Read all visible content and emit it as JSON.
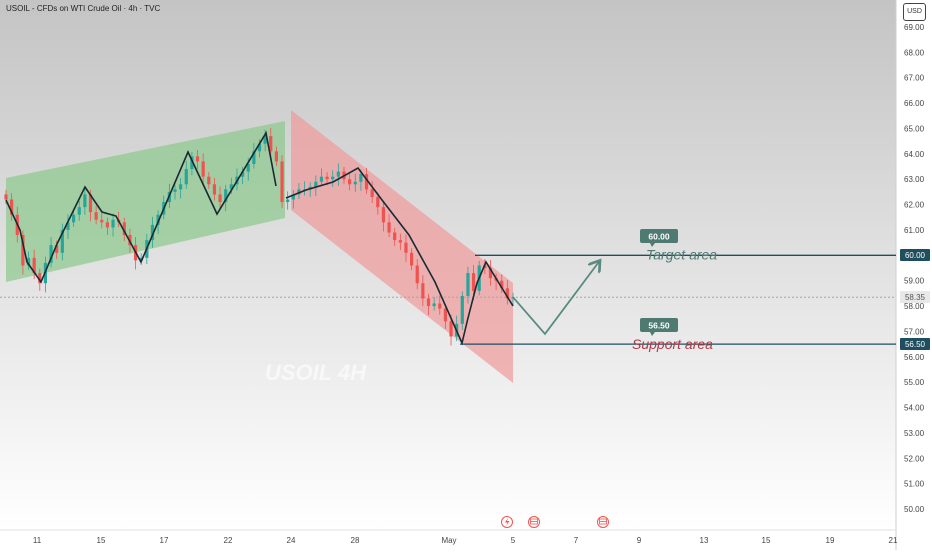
{
  "header": {
    "title": "USOIL - CFDs on WTI Crude Oil · 4h · TVC",
    "currency": "USD"
  },
  "watermark": "USOIL 4H",
  "annotations": {
    "target_label": "Target area",
    "support_label": "Support area",
    "target_price_tag": "60.00",
    "support_price_tag": "56.50",
    "axis_target": "60.00",
    "axis_support": "56.50",
    "axis_last": "58.35"
  },
  "colors": {
    "up": "#26a69a",
    "down": "#ef5350",
    "green_channel": "#8cc98c",
    "red_channel": "#ef9a9a",
    "level_line": "#1f4e5f",
    "tag_bg": "#4e7a72",
    "arrow": "#5a8a80",
    "support_text": "#b23a48",
    "target_text": "#4e7a72"
  },
  "chart_data": {
    "type": "candlestick",
    "title": "USOIL - CFDs on WTI Crude Oil · 4h · TVC",
    "y_ticks": [
      "69.00",
      "68.00",
      "67.00",
      "66.00",
      "65.00",
      "64.00",
      "63.00",
      "62.00",
      "61.00",
      "60.00",
      "59.00",
      "58.00",
      "57.00",
      "56.00",
      "55.00",
      "54.00",
      "53.00",
      "52.00",
      "51.00",
      "50.00"
    ],
    "x_ticks": [
      "11",
      "15",
      "17",
      "22",
      "24",
      "28",
      "May",
      "5",
      "7",
      "9",
      "13",
      "15",
      "19",
      "21"
    ],
    "ylim": [
      49.6,
      69.6
    ],
    "last_price": 58.35,
    "levels": [
      {
        "name": "Target area",
        "value": 60.0
      },
      {
        "name": "Support area",
        "value": 56.5
      }
    ],
    "closes": [
      62.2,
      61.6,
      60.8,
      59.6,
      59.9,
      59.3,
      58.9,
      59.7,
      60.4,
      60.1,
      61.0,
      61.3,
      61.6,
      61.9,
      62.4,
      61.7,
      61.4,
      61.3,
      61.1,
      61.4,
      61.3,
      60.8,
      60.4,
      59.8,
      59.9,
      60.6,
      61.2,
      61.6,
      62.1,
      62.5,
      62.6,
      62.8,
      63.4,
      63.9,
      63.7,
      63.1,
      62.8,
      62.4,
      62.1,
      62.6,
      62.8,
      63.1,
      63.3,
      63.6,
      64.1,
      64.4,
      64.7,
      64.1,
      63.7,
      62.1,
      62.2,
      62.4,
      62.6,
      62.6,
      62.7,
      62.9,
      63.1,
      63.0,
      63.1,
      63.3,
      63.0,
      62.8,
      62.9,
      63.2,
      62.6,
      62.3,
      61.9,
      61.3,
      60.9,
      60.6,
      60.5,
      60.1,
      59.6,
      58.9,
      58.3,
      58.0,
      58.1,
      57.9,
      57.4,
      56.8,
      57.3,
      58.4,
      59.3,
      58.6,
      59.6,
      59.5,
      59.1,
      59.0,
      58.7,
      58.3,
      58.35
    ],
    "projection": [
      {
        "label": "last",
        "value": 58.35
      },
      {
        "label": "pullback",
        "value": 56.9
      },
      {
        "label": "target",
        "value": 59.8
      }
    ]
  }
}
